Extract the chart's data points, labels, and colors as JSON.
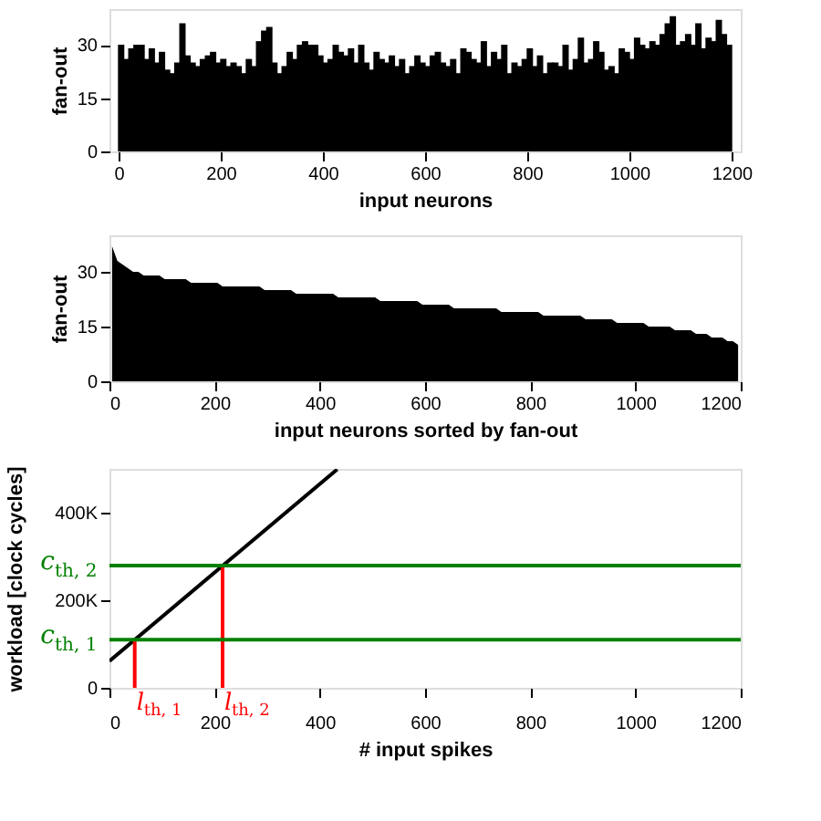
{
  "chart_data": [
    {
      "type": "bar",
      "xlabel": "input neurons",
      "ylabel": "fan-out",
      "color": "#000000",
      "x": [
        5,
        15,
        25,
        35,
        45,
        55,
        65,
        75,
        85,
        95,
        105,
        115,
        125,
        135,
        145,
        155,
        165,
        175,
        185,
        195,
        205,
        215,
        225,
        235,
        245,
        255,
        265,
        275,
        285,
        295,
        305,
        315,
        325,
        335,
        345,
        355,
        365,
        375,
        385,
        395,
        405,
        415,
        425,
        435,
        445,
        455,
        465,
        475,
        485,
        495,
        505,
        515,
        525,
        535,
        545,
        555,
        565,
        575,
        585,
        595,
        605,
        615,
        625,
        635,
        645,
        655,
        665,
        675,
        685,
        695,
        705,
        715,
        725,
        735,
        745,
        755,
        765,
        775,
        785,
        795,
        805,
        815,
        825,
        835,
        845,
        855,
        865,
        875,
        885,
        895,
        905,
        915,
        925,
        935,
        945,
        955,
        965,
        975,
        985,
        995,
        1005,
        1015,
        1025,
        1035,
        1045,
        1055,
        1065,
        1075,
        1085,
        1095,
        1105,
        1115,
        1125,
        1135,
        1145,
        1155,
        1165,
        1175,
        1185,
        1195
      ],
      "values": [
        30,
        26,
        29,
        30,
        30,
        26,
        29,
        25,
        28,
        23,
        22,
        25,
        36,
        27,
        25,
        24,
        26,
        27,
        28,
        25,
        26,
        24,
        25,
        24,
        22,
        26,
        24,
        31,
        34,
        35,
        25,
        22,
        24,
        28,
        26,
        30,
        31,
        30,
        30,
        27,
        25,
        26,
        30,
        28,
        27,
        29,
        25,
        30,
        25,
        23,
        28,
        26,
        25,
        27,
        24,
        26,
        22,
        24,
        27,
        25,
        24,
        27,
        28,
        25,
        24,
        26,
        22,
        29,
        28,
        26,
        25,
        31,
        24,
        28,
        26,
        30,
        22,
        25,
        24,
        26,
        29,
        24,
        27,
        22,
        25,
        25,
        24,
        30,
        23,
        26,
        32,
        25,
        26,
        31,
        28,
        23,
        24,
        22,
        29,
        28,
        26,
        32,
        30,
        29,
        31,
        30,
        33,
        36,
        38,
        30,
        31,
        33,
        30,
        36,
        29,
        32,
        31,
        37,
        33,
        30
      ],
      "xlim": [
        0,
        1200
      ],
      "xticks": [
        0,
        200,
        400,
        600,
        800,
        1000,
        1200
      ],
      "ylim": [
        0,
        40
      ],
      "yticks": [
        0,
        15,
        30
      ],
      "grid": false
    },
    {
      "type": "area",
      "xlabel": "input neurons sorted by fan-out",
      "ylabel": "fan-out",
      "color": "#000000",
      "x": [
        5,
        15,
        25,
        35,
        45,
        55,
        65,
        75,
        85,
        95,
        105,
        115,
        125,
        135,
        145,
        155,
        165,
        175,
        185,
        195,
        205,
        215,
        225,
        235,
        245,
        255,
        265,
        275,
        285,
        295,
        305,
        315,
        325,
        335,
        345,
        355,
        365,
        375,
        385,
        395,
        405,
        415,
        425,
        435,
        445,
        455,
        465,
        475,
        485,
        495,
        505,
        515,
        525,
        535,
        545,
        555,
        565,
        575,
        585,
        595,
        605,
        615,
        625,
        635,
        645,
        655,
        665,
        675,
        685,
        695,
        705,
        715,
        725,
        735,
        745,
        755,
        765,
        775,
        785,
        795,
        805,
        815,
        825,
        835,
        845,
        855,
        865,
        875,
        885,
        895,
        905,
        915,
        925,
        935,
        945,
        955,
        965,
        975,
        985,
        995,
        1005,
        1015,
        1025,
        1035,
        1045,
        1055,
        1065,
        1075,
        1085,
        1095,
        1105,
        1115,
        1125,
        1135,
        1145,
        1155,
        1165,
        1175,
        1185,
        1195
      ],
      "values": [
        37,
        33,
        32,
        31,
        30,
        30,
        29,
        29,
        29,
        29,
        28,
        28,
        28,
        28,
        28,
        27,
        27,
        27,
        27,
        27,
        27,
        26,
        26,
        26,
        26,
        26,
        26,
        26,
        26,
        25,
        25,
        25,
        25,
        25,
        25,
        24,
        24,
        24,
        24,
        24,
        24,
        24,
        24,
        23,
        23,
        23,
        23,
        23,
        23,
        23,
        23,
        22,
        22,
        22,
        22,
        22,
        22,
        22,
        22,
        21,
        21,
        21,
        21,
        21,
        21,
        20,
        20,
        20,
        20,
        20,
        20,
        20,
        20,
        20,
        19,
        19,
        19,
        19,
        19,
        19,
        19,
        19,
        18,
        18,
        18,
        18,
        18,
        18,
        18,
        18,
        17,
        17,
        17,
        17,
        17,
        17,
        16,
        16,
        16,
        16,
        16,
        16,
        15,
        15,
        15,
        15,
        15,
        14,
        14,
        14,
        14,
        13,
        13,
        13,
        12,
        12,
        12,
        11,
        11,
        10
      ],
      "xlim": [
        0,
        1200
      ],
      "xticks": [
        0,
        200,
        400,
        600,
        800,
        1000,
        1200
      ],
      "ylim": [
        0,
        40
      ],
      "yticks": [
        0,
        15,
        30
      ],
      "grid": false
    },
    {
      "type": "line",
      "xlabel": "# input spikes",
      "ylabel": "workload [clock cycles]",
      "series": [
        {
          "color": "#000000",
          "x": [
            0,
            433
          ],
          "values": [
            61000,
            499000
          ]
        },
        {
          "color": "#ff0000",
          "x": [
            48,
            48
          ],
          "values": [
            0,
            110000
          ]
        },
        {
          "color": "#ff0000",
          "x": [
            215,
            215
          ],
          "values": [
            0,
            279000
          ]
        }
      ],
      "ref_lines": [
        {
          "axis": "y",
          "value": 110000,
          "label": "c$_{th, 1}$",
          "color": "#008000"
        },
        {
          "axis": "y",
          "value": 279000,
          "label": "c$_{th, 2}$",
          "color": "#008000"
        }
      ],
      "annotations": [
        {
          "text": "l$_{th, 1}$",
          "x": 48,
          "y": 0
        },
        {
          "text": "l$_{th, 2}$",
          "x": 215,
          "y": 0
        }
      ],
      "xlim": [
        0,
        1200
      ],
      "xticks": [
        0,
        200,
        400,
        600,
        800,
        1000,
        1200
      ],
      "ylim": [
        0,
        500000
      ],
      "yticks": [
        0,
        {
          "value": 200000,
          "label": "200K"
        },
        {
          "value": 400000,
          "label": "400K"
        }
      ],
      "grid": false,
      "line_style": "solid",
      "marker": "none"
    }
  ]
}
